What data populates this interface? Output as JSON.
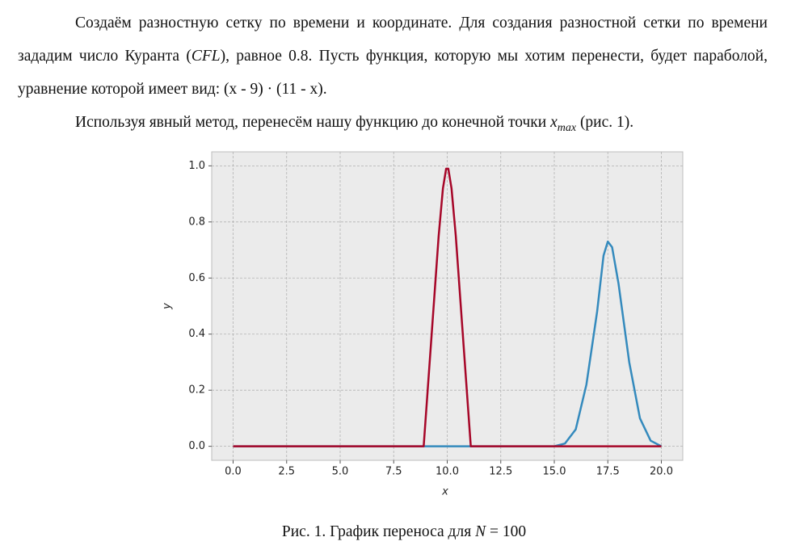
{
  "paragraphs": [
    [
      "Создаём разностную сетку по времени и координате. Для создания разностной сетки по времени зададим число Куранта (",
      "CFL",
      "), равное 0.8. Пусть функция, которую мы хотим перенести, будет параболой, уравнение которой имеет вид: (x - 9) · (11 - x)."
    ],
    [
      "Используя явный метод, перенесём нашу функцию до конечной точки ",
      "x",
      "max",
      " (рис. 1)."
    ]
  ],
  "caption": [
    "Рис. 1. График переноса для ",
    "N",
    " = 100"
  ],
  "chart_data": {
    "type": "line",
    "xlabel": "x",
    "ylabel": "y",
    "x": [
      0,
      8.9,
      9.6,
      9.8,
      9.95,
      10.05,
      10.2,
      10.4,
      11.1,
      15.0,
      15.5,
      16.0,
      16.5,
      17.0,
      17.3,
      17.5,
      17.7,
      18.0,
      18.5,
      19.0,
      19.5,
      20
    ],
    "series": [
      {
        "color": "#348abd",
        "values": [
          0,
          0,
          0,
          0,
          0,
          0,
          0,
          0,
          0,
          0,
          0.01,
          0.06,
          0.22,
          0.48,
          0.68,
          0.73,
          0.71,
          0.58,
          0.3,
          0.1,
          0.02,
          0
        ]
      },
      {
        "color": "#a60628",
        "values": [
          0,
          0,
          0.75,
          0.92,
          0.99,
          0.99,
          0.92,
          0.75,
          0,
          0,
          0,
          0,
          0,
          0,
          0,
          0,
          0,
          0,
          0,
          0,
          0,
          0
        ]
      }
    ],
    "xlim": [
      -1,
      21
    ],
    "ylim": [
      -0.05,
      1.05
    ],
    "xticks": [
      {
        "value": 0,
        "label": "0.0"
      },
      {
        "value": 2.5,
        "label": "2.5"
      },
      {
        "value": 5,
        "label": "5.0"
      },
      {
        "value": 7.5,
        "label": "7.5"
      },
      {
        "value": 10,
        "label": "10.0"
      },
      {
        "value": 12.5,
        "label": "12.5"
      },
      {
        "value": 15,
        "label": "15.0"
      },
      {
        "value": 17.5,
        "label": "17.5"
      },
      {
        "value": 20,
        "label": "20.0"
      }
    ],
    "yticks": [
      {
        "value": 0,
        "label": "0.0"
      },
      {
        "value": 0.2,
        "label": "0.2"
      },
      {
        "value": 0.4,
        "label": "0.4"
      },
      {
        "value": 0.6,
        "label": "0.6"
      },
      {
        "value": 0.8,
        "label": "0.8"
      },
      {
        "value": 1,
        "label": "1.0"
      }
    ],
    "grid": true
  }
}
